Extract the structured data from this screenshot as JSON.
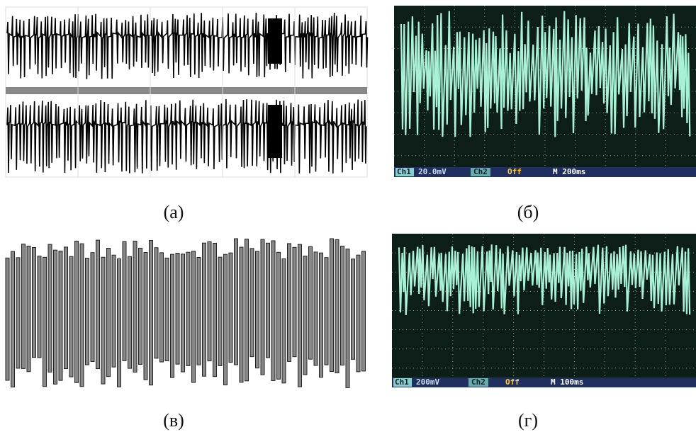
{
  "panels": [
    {
      "caption": "(а)"
    },
    {
      "caption": "(б)",
      "status": {
        "ch1_label": "Ch1",
        "ch1_value": "20.0mV",
        "ch2_label": "Ch2",
        "ch2_value": "Off",
        "timebase": "M 200ms"
      }
    },
    {
      "caption": "(в)"
    },
    {
      "caption": "(г)",
      "status": {
        "ch1_label": "Ch1",
        "ch1_value": "200mV",
        "ch2_label": "Ch2",
        "ch2_value": "Off",
        "timebase": "M 100ms"
      }
    }
  ]
}
